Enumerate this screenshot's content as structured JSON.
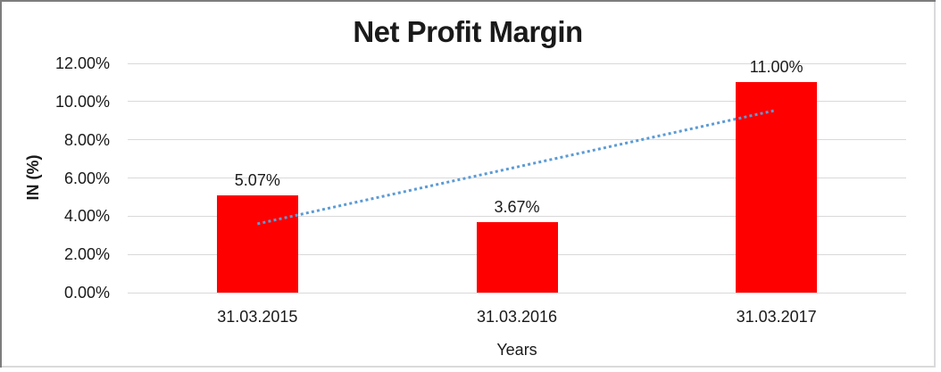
{
  "chart_data": {
    "type": "bar",
    "title": "Net Profit Margin",
    "xlabel": "Years",
    "ylabel": "IN (%)",
    "categories": [
      "31.03.2015",
      "31.03.2016",
      "31.03.2017"
    ],
    "values": [
      5.07,
      3.67,
      11.0
    ],
    "data_labels": [
      "5.07%",
      "3.67%",
      "11.00%"
    ],
    "ylim": [
      0,
      12
    ],
    "y_ticks": [
      {
        "value": 0,
        "label": "0.00%"
      },
      {
        "value": 2,
        "label": "2.00%"
      },
      {
        "value": 4,
        "label": "4.00%"
      },
      {
        "value": 6,
        "label": "6.00%"
      },
      {
        "value": 8,
        "label": "8.00%"
      },
      {
        "value": 10,
        "label": "10.00%"
      },
      {
        "value": 12,
        "label": "12.00%"
      }
    ],
    "grid": "horizontal",
    "legend": "none",
    "colors": {
      "bar": "#FF0000",
      "gridline": "#D9D9D9",
      "text": "#1A1A1A",
      "trendline": "#5B9BD5"
    },
    "trendline": {
      "type": "linear",
      "style": "dotted",
      "start": {
        "category_index": 0,
        "value": 3.6
      },
      "end": {
        "category_index": 2,
        "value": 9.55
      }
    }
  }
}
